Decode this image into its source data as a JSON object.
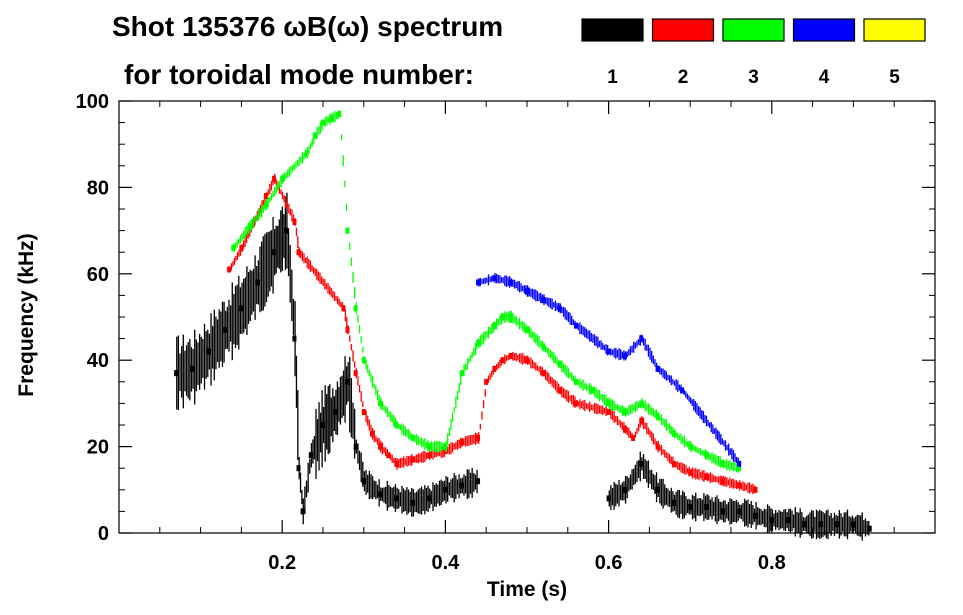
{
  "chart_data": {
    "type": "scatter",
    "title_line1": "Shot 135376 ωB(ω) spectrum",
    "title_line2": "for toroidal mode number:",
    "xlabel": "Time (s)",
    "ylabel": "Frequency (kHz)",
    "xlim": [
      0.0,
      1.0
    ],
    "ylim": [
      0,
      100
    ],
    "x_ticks": [
      0.2,
      0.4,
      0.6,
      0.8
    ],
    "x_tick_labels": [
      "0.2",
      "0.4",
      "0.6",
      "0.8"
    ],
    "y_ticks": [
      0,
      20,
      40,
      60,
      80,
      100
    ],
    "y_tick_labels": [
      "0",
      "20",
      "40",
      "60",
      "80",
      "100"
    ],
    "legend": [
      {
        "label": "1",
        "color": "#000000"
      },
      {
        "label": "2",
        "color": "#ff0000"
      },
      {
        "label": "3",
        "color": "#00ff00"
      },
      {
        "label": "4",
        "color": "#0000ff"
      },
      {
        "label": "5",
        "color": "#ffff00"
      }
    ],
    "series": [
      {
        "name": "n=1",
        "color": "#000000",
        "x": [
          0.07,
          0.09,
          0.11,
          0.13,
          0.15,
          0.17,
          0.19,
          0.205,
          0.215,
          0.22,
          0.225,
          0.235,
          0.25,
          0.265,
          0.28,
          0.29,
          0.3,
          0.32,
          0.34,
          0.36,
          0.38,
          0.4,
          0.42,
          0.44,
          0.6,
          0.62,
          0.64,
          0.66,
          0.68,
          0.7,
          0.72,
          0.74,
          0.76,
          0.78,
          0.8,
          0.82,
          0.84,
          0.86,
          0.88,
          0.9,
          0.92
        ],
        "y": [
          37,
          38,
          42,
          47,
          52,
          58,
          65,
          70,
          45,
          15,
          5,
          18,
          25,
          28,
          35,
          20,
          12,
          9,
          8,
          7,
          8,
          10,
          11,
          12,
          8,
          10,
          16,
          10,
          7,
          6,
          6,
          5,
          5,
          4,
          3,
          3,
          2,
          2,
          2,
          2,
          1
        ]
      },
      {
        "name": "n=2",
        "color": "#ff0000",
        "x": [
          0.135,
          0.15,
          0.165,
          0.18,
          0.19,
          0.215,
          0.22,
          0.275,
          0.28,
          0.29,
          0.3,
          0.31,
          0.32,
          0.33,
          0.34,
          0.36,
          0.38,
          0.4,
          0.42,
          0.44,
          0.45,
          0.46,
          0.47,
          0.48,
          0.5,
          0.52,
          0.54,
          0.56,
          0.6,
          0.62,
          0.63,
          0.64,
          0.66,
          0.68,
          0.7,
          0.72,
          0.74,
          0.76,
          0.78
        ],
        "y": [
          61,
          66,
          72,
          78,
          82,
          72,
          65,
          52,
          47,
          37,
          28,
          23,
          20,
          18,
          16,
          17,
          18,
          19,
          21,
          22,
          35,
          38,
          40,
          41,
          40,
          37,
          33,
          30,
          28,
          24,
          22,
          26,
          20,
          16,
          14,
          13,
          12,
          11,
          10
        ]
      },
      {
        "name": "n=3",
        "color": "#00ff00",
        "x": [
          0.14,
          0.16,
          0.18,
          0.2,
          0.23,
          0.24,
          0.25,
          0.26,
          0.27,
          0.28,
          0.29,
          0.3,
          0.32,
          0.34,
          0.36,
          0.38,
          0.4,
          0.42,
          0.44,
          0.46,
          0.47,
          0.48,
          0.5,
          0.52,
          0.54,
          0.56,
          0.58,
          0.6,
          0.62,
          0.64,
          0.66,
          0.68,
          0.7,
          0.72,
          0.74,
          0.76
        ],
        "y": [
          66,
          71,
          76,
          82,
          88,
          92,
          95,
          96,
          97,
          70,
          52,
          40,
          30,
          25,
          22,
          20,
          20,
          37,
          44,
          48,
          50,
          50,
          47,
          43,
          39,
          35,
          33,
          30,
          28,
          30,
          27,
          23,
          20,
          18,
          16,
          15
        ]
      },
      {
        "name": "n=4",
        "color": "#0000ff",
        "x": [
          0.44,
          0.46,
          0.48,
          0.5,
          0.52,
          0.54,
          0.56,
          0.6,
          0.62,
          0.64,
          0.66,
          0.69,
          0.76
        ],
        "y": [
          58,
          59,
          58,
          56,
          54,
          52,
          48,
          42,
          41,
          45,
          38,
          33,
          16
        ]
      },
      {
        "name": "n=5",
        "color": "#ffff00",
        "x": [],
        "y": []
      }
    ]
  }
}
